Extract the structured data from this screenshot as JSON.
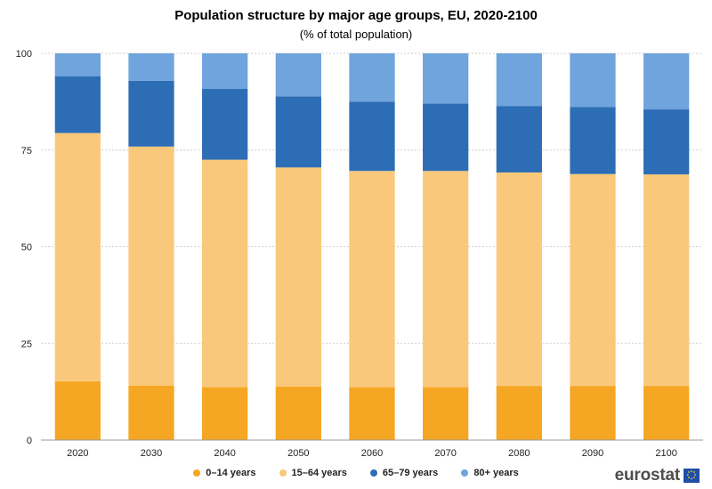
{
  "chart_data": {
    "type": "bar",
    "stacked": true,
    "title": "Population structure by major age groups, EU, 2020-2100",
    "subtitle": "(% of total population)",
    "xlabel": "",
    "ylabel": "",
    "ylim": [
      0,
      100
    ],
    "yticks": [
      "0",
      "25",
      "50",
      "75",
      "100"
    ],
    "categories": [
      "2020",
      "2030",
      "2040",
      "2050",
      "2060",
      "2070",
      "2080",
      "2090",
      "2100"
    ],
    "series": [
      {
        "name": "0–14 years",
        "color": "#f5a623",
        "values": [
          15.2,
          14.1,
          13.7,
          13.8,
          13.7,
          13.7,
          14.0,
          14.0,
          14.0
        ]
      },
      {
        "name": "15–64 years",
        "color": "#f9c87a",
        "values": [
          64.2,
          61.8,
          58.8,
          56.7,
          55.9,
          55.9,
          55.2,
          54.8,
          54.7
        ]
      },
      {
        "name": "65–79 years",
        "color": "#2d6db5",
        "values": [
          14.7,
          17.0,
          18.3,
          18.4,
          17.9,
          17.4,
          17.2,
          17.3,
          16.8
        ]
      },
      {
        "name": "80+ years",
        "color": "#6fa4dd",
        "values": [
          5.9,
          7.1,
          9.2,
          11.1,
          12.5,
          13.0,
          13.6,
          13.9,
          14.5
        ]
      }
    ],
    "legend_position": "bottom",
    "grid": true
  },
  "branding": {
    "logo_text": "eurostat"
  }
}
